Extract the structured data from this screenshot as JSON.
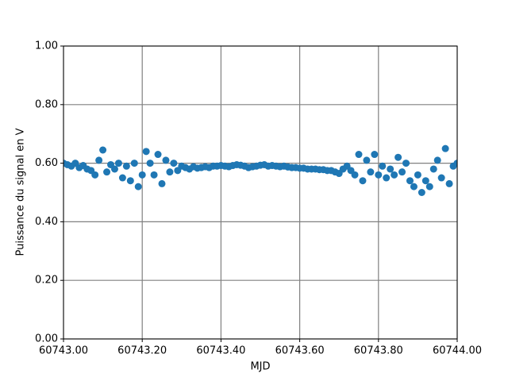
{
  "chart_data": {
    "type": "scatter",
    "xlabel": "MJD",
    "ylabel": "Puissance du signal en V",
    "color": "#1f77b4",
    "grid": true,
    "xlim": [
      60743.0,
      60744.0
    ],
    "xticks": [
      {
        "value": 60743.0,
        "label": "60743.00"
      },
      {
        "value": 60743.2,
        "label": "60743.20"
      },
      {
        "value": 60743.4,
        "label": "60743.40"
      },
      {
        "value": 60743.6,
        "label": "60743.60"
      },
      {
        "value": 60743.8,
        "label": "60743.80"
      },
      {
        "value": 60744.0,
        "label": "60744.00"
      }
    ],
    "ylim": [
      0,
      1
    ],
    "yticks": [
      {
        "value": 0,
        "label": "0.00"
      },
      {
        "value": 0.2,
        "label": "0.20"
      },
      {
        "value": 0.4,
        "label": "0.40"
      },
      {
        "value": 0.6,
        "label": "0.60"
      },
      {
        "value": 0.8,
        "label": "0.80"
      },
      {
        "value": 1,
        "label": "1.00"
      }
    ],
    "x": [
      60743.0,
      60743.01,
      60743.02,
      60743.03,
      60743.04,
      60743.05,
      60743.06,
      60743.07,
      60743.08,
      60743.09,
      60743.1,
      60743.11,
      60743.12,
      60743.13,
      60743.14,
      60743.15,
      60743.16,
      60743.17,
      60743.18,
      60743.19,
      60743.2,
      60743.21,
      60743.22,
      60743.23,
      60743.24,
      60743.25,
      60743.26,
      60743.27,
      60743.28,
      60743.29,
      60743.3,
      60743.31,
      60743.32,
      60743.33,
      60743.34,
      60743.35,
      60743.36,
      60743.37,
      60743.38,
      60743.39,
      60743.4,
      60743.41,
      60743.42,
      60743.43,
      60743.44,
      60743.45,
      60743.46,
      60743.47,
      60743.48,
      60743.49,
      60743.5,
      60743.51,
      60743.52,
      60743.53,
      60743.54,
      60743.55,
      60743.56,
      60743.57,
      60743.58,
      60743.59,
      60743.6,
      60743.61,
      60743.62,
      60743.63,
      60743.64,
      60743.65,
      60743.66,
      60743.67,
      60743.68,
      60743.69,
      60743.7,
      60743.71,
      60743.72,
      60743.73,
      60743.74,
      60743.75,
      60743.76,
      60743.77,
      60743.78,
      60743.79,
      60743.8,
      60743.81,
      60743.82,
      60743.83,
      60743.84,
      60743.85,
      60743.86,
      60743.87,
      60743.88,
      60743.89,
      60743.9,
      60743.91,
      60743.92,
      60743.93,
      60743.94,
      60743.95,
      60743.96,
      60743.97,
      60743.98,
      60743.99,
      60744.0
    ],
    "values": [
      0.6,
      0.595,
      0.59,
      0.6,
      0.585,
      0.592,
      0.58,
      0.575,
      0.56,
      0.61,
      0.645,
      0.57,
      0.595,
      0.58,
      0.6,
      0.55,
      0.59,
      0.54,
      0.6,
      0.52,
      0.56,
      0.64,
      0.6,
      0.56,
      0.63,
      0.53,
      0.61,
      0.57,
      0.6,
      0.575,
      0.59,
      0.585,
      0.58,
      0.588,
      0.583,
      0.585,
      0.588,
      0.585,
      0.59,
      0.59,
      0.592,
      0.59,
      0.588,
      0.592,
      0.595,
      0.593,
      0.59,
      0.585,
      0.588,
      0.59,
      0.593,
      0.595,
      0.59,
      0.592,
      0.59,
      0.588,
      0.59,
      0.587,
      0.585,
      0.585,
      0.583,
      0.583,
      0.58,
      0.58,
      0.58,
      0.578,
      0.578,
      0.575,
      0.575,
      0.57,
      0.565,
      0.58,
      0.59,
      0.575,
      0.56,
      0.63,
      0.54,
      0.61,
      0.57,
      0.63,
      0.56,
      0.59,
      0.55,
      0.58,
      0.56,
      0.62,
      0.57,
      0.6,
      0.54,
      0.52,
      0.56,
      0.5,
      0.54,
      0.52,
      0.58,
      0.61,
      0.55,
      0.65,
      0.53,
      0.59,
      0.6
    ]
  }
}
